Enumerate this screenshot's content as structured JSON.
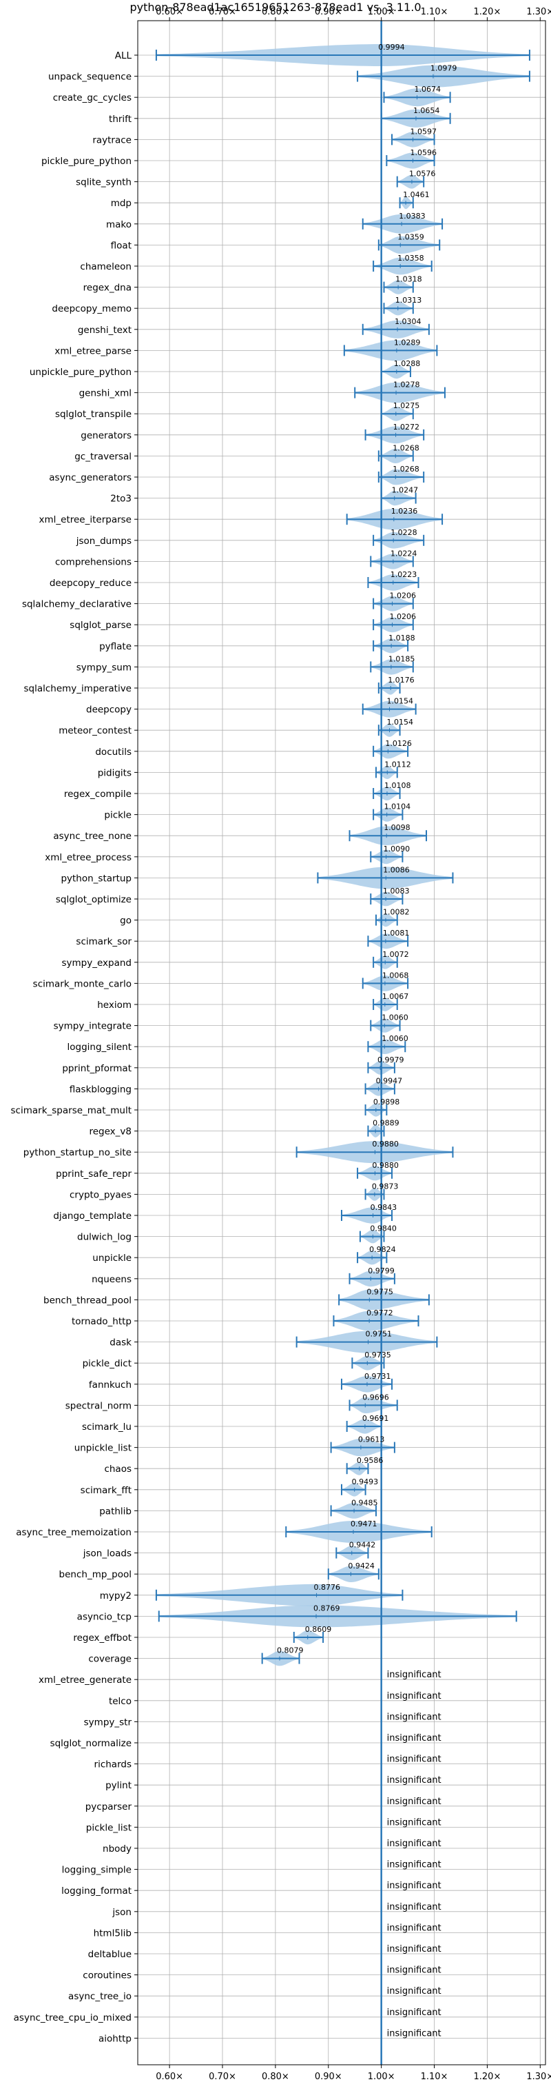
{
  "chart_data": {
    "type": "violin",
    "title": "python-878ead1ac16519651263-878ead1 vs. 3.11.0",
    "xlim": [
      0.54,
      1.31
    ],
    "xticks": [
      0.6,
      0.7,
      0.8,
      0.9,
      1.0,
      1.1,
      1.2,
      1.3
    ],
    "xtick_labels": [
      "0.60×",
      "0.70×",
      "0.80×",
      "0.90×",
      "1.00×",
      "1.10×",
      "1.20×",
      "1.30×"
    ],
    "reference": 1.0,
    "grid": true,
    "colors": {
      "violin": "#a9cbe8",
      "line": "#2a78b8",
      "grid": "#b0b0b0"
    },
    "insignificant_text": "insignificant",
    "benchmarks": [
      {
        "name": "ALL",
        "value": 0.9994,
        "label": "0.9994",
        "min": 0.575,
        "max": 1.28
      },
      {
        "name": "unpack_sequence",
        "value": 1.0979,
        "label": "1.0979",
        "min": 0.955,
        "max": 1.28
      },
      {
        "name": "create_gc_cycles",
        "value": 1.0674,
        "label": "1.0674",
        "min": 1.005,
        "max": 1.13
      },
      {
        "name": "thrift",
        "value": 1.0654,
        "label": "1.0654",
        "min": 1.0,
        "max": 1.13
      },
      {
        "name": "raytrace",
        "value": 1.0597,
        "label": "1.0597",
        "min": 1.02,
        "max": 1.1
      },
      {
        "name": "pickle_pure_python",
        "value": 1.0596,
        "label": "1.0596",
        "min": 1.01,
        "max": 1.1
      },
      {
        "name": "sqlite_synth",
        "value": 1.0576,
        "label": "1.0576",
        "min": 1.03,
        "max": 1.08
      },
      {
        "name": "mdp",
        "value": 1.0461,
        "label": "1.0461",
        "min": 1.035,
        "max": 1.06
      },
      {
        "name": "mako",
        "value": 1.0383,
        "label": "1.0383",
        "min": 0.965,
        "max": 1.115
      },
      {
        "name": "float",
        "value": 1.0359,
        "label": "1.0359",
        "min": 0.995,
        "max": 1.11
      },
      {
        "name": "chameleon",
        "value": 1.0358,
        "label": "1.0358",
        "min": 0.985,
        "max": 1.095
      },
      {
        "name": "regex_dna",
        "value": 1.0318,
        "label": "1.0318",
        "min": 1.005,
        "max": 1.06
      },
      {
        "name": "deepcopy_memo",
        "value": 1.0313,
        "label": "1.0313",
        "min": 1.005,
        "max": 1.06
      },
      {
        "name": "genshi_text",
        "value": 1.0304,
        "label": "1.0304",
        "min": 0.965,
        "max": 1.09
      },
      {
        "name": "xml_etree_parse",
        "value": 1.0289,
        "label": "1.0289",
        "min": 0.93,
        "max": 1.105
      },
      {
        "name": "unpickle_pure_python",
        "value": 1.0288,
        "label": "1.0288",
        "min": 1.0,
        "max": 1.055
      },
      {
        "name": "genshi_xml",
        "value": 1.0278,
        "label": "1.0278",
        "min": 0.95,
        "max": 1.12
      },
      {
        "name": "sqlglot_transpile",
        "value": 1.0275,
        "label": "1.0275",
        "min": 1.0,
        "max": 1.06
      },
      {
        "name": "generators",
        "value": 1.0272,
        "label": "1.0272",
        "min": 0.97,
        "max": 1.08
      },
      {
        "name": "gc_traversal",
        "value": 1.0268,
        "label": "1.0268",
        "min": 0.995,
        "max": 1.06
      },
      {
        "name": "async_generators",
        "value": 1.0268,
        "label": "1.0268",
        "min": 0.995,
        "max": 1.08
      },
      {
        "name": "2to3",
        "value": 1.0247,
        "label": "1.0247",
        "min": 1.0,
        "max": 1.065
      },
      {
        "name": "xml_etree_iterparse",
        "value": 1.0236,
        "label": "1.0236",
        "min": 0.935,
        "max": 1.115
      },
      {
        "name": "json_dumps",
        "value": 1.0228,
        "label": "1.0228",
        "min": 0.985,
        "max": 1.08
      },
      {
        "name": "comprehensions",
        "value": 1.0224,
        "label": "1.0224",
        "min": 0.98,
        "max": 1.06
      },
      {
        "name": "deepcopy_reduce",
        "value": 1.0223,
        "label": "1.0223",
        "min": 0.975,
        "max": 1.07
      },
      {
        "name": "sqlalchemy_declarative",
        "value": 1.0206,
        "label": "1.0206",
        "min": 0.985,
        "max": 1.06
      },
      {
        "name": "sqlglot_parse",
        "value": 1.0206,
        "label": "1.0206",
        "min": 0.985,
        "max": 1.06
      },
      {
        "name": "pyflate",
        "value": 1.0188,
        "label": "1.0188",
        "min": 0.985,
        "max": 1.05
      },
      {
        "name": "sympy_sum",
        "value": 1.0185,
        "label": "1.0185",
        "min": 0.98,
        "max": 1.06
      },
      {
        "name": "sqlalchemy_imperative",
        "value": 1.0176,
        "label": "1.0176",
        "min": 0.995,
        "max": 1.035
      },
      {
        "name": "deepcopy",
        "value": 1.0154,
        "label": "1.0154",
        "min": 0.965,
        "max": 1.065
      },
      {
        "name": "meteor_contest",
        "value": 1.0154,
        "label": "1.0154",
        "min": 0.995,
        "max": 1.035
      },
      {
        "name": "docutils",
        "value": 1.0126,
        "label": "1.0126",
        "min": 0.985,
        "max": 1.05
      },
      {
        "name": "pidigits",
        "value": 1.0112,
        "label": "1.0112",
        "min": 0.99,
        "max": 1.03
      },
      {
        "name": "regex_compile",
        "value": 1.0108,
        "label": "1.0108",
        "min": 0.985,
        "max": 1.035
      },
      {
        "name": "pickle",
        "value": 1.0104,
        "label": "1.0104",
        "min": 0.985,
        "max": 1.04
      },
      {
        "name": "async_tree_none",
        "value": 1.0098,
        "label": "1.0098",
        "min": 0.94,
        "max": 1.085
      },
      {
        "name": "xml_etree_process",
        "value": 1.009,
        "label": "1.0090",
        "min": 0.98,
        "max": 1.04
      },
      {
        "name": "python_startup",
        "value": 1.0086,
        "label": "1.0086",
        "min": 0.88,
        "max": 1.135
      },
      {
        "name": "sqlglot_optimize",
        "value": 1.0083,
        "label": "1.0083",
        "min": 0.98,
        "max": 1.04
      },
      {
        "name": "go",
        "value": 1.0082,
        "label": "1.0082",
        "min": 0.99,
        "max": 1.03
      },
      {
        "name": "scimark_sor",
        "value": 1.0081,
        "label": "1.0081",
        "min": 0.975,
        "max": 1.05
      },
      {
        "name": "sympy_expand",
        "value": 1.0072,
        "label": "1.0072",
        "min": 0.985,
        "max": 1.03
      },
      {
        "name": "scimark_monte_carlo",
        "value": 1.0068,
        "label": "1.0068",
        "min": 0.965,
        "max": 1.05
      },
      {
        "name": "hexiom",
        "value": 1.0067,
        "label": "1.0067",
        "min": 0.985,
        "max": 1.03
      },
      {
        "name": "sympy_integrate",
        "value": 1.006,
        "label": "1.0060",
        "min": 0.98,
        "max": 1.035
      },
      {
        "name": "logging_silent",
        "value": 1.006,
        "label": "1.0060",
        "min": 0.975,
        "max": 1.045
      },
      {
        "name": "pprint_pformat",
        "value": 0.9979,
        "label": "0.9979",
        "min": 0.975,
        "max": 1.025
      },
      {
        "name": "flaskblogging",
        "value": 0.9947,
        "label": "0.9947",
        "min": 0.97,
        "max": 1.025
      },
      {
        "name": "scimark_sparse_mat_mult",
        "value": 0.9898,
        "label": "0.9898",
        "min": 0.97,
        "max": 1.01
      },
      {
        "name": "regex_v8",
        "value": 0.9889,
        "label": "0.9889",
        "min": 0.975,
        "max": 1.005
      },
      {
        "name": "python_startup_no_site",
        "value": 0.988,
        "label": "0.9880",
        "min": 0.84,
        "max": 1.135
      },
      {
        "name": "pprint_safe_repr",
        "value": 0.988,
        "label": "0.9880",
        "min": 0.955,
        "max": 1.02
      },
      {
        "name": "crypto_pyaes",
        "value": 0.9873,
        "label": "0.9873",
        "min": 0.97,
        "max": 1.005
      },
      {
        "name": "django_template",
        "value": 0.9843,
        "label": "0.9843",
        "min": 0.925,
        "max": 1.02
      },
      {
        "name": "dulwich_log",
        "value": 0.984,
        "label": "0.9840",
        "min": 0.96,
        "max": 1.005
      },
      {
        "name": "unpickle",
        "value": 0.9824,
        "label": "0.9824",
        "min": 0.955,
        "max": 1.01
      },
      {
        "name": "nqueens",
        "value": 0.9799,
        "label": "0.9799",
        "min": 0.94,
        "max": 1.025
      },
      {
        "name": "bench_thread_pool",
        "value": 0.9775,
        "label": "0.9775",
        "min": 0.92,
        "max": 1.09
      },
      {
        "name": "tornado_http",
        "value": 0.9772,
        "label": "0.9772",
        "min": 0.91,
        "max": 1.07
      },
      {
        "name": "dask",
        "value": 0.9751,
        "label": "0.9751",
        "min": 0.84,
        "max": 1.105
      },
      {
        "name": "pickle_dict",
        "value": 0.9735,
        "label": "0.9735",
        "min": 0.945,
        "max": 1.005
      },
      {
        "name": "fannkuch",
        "value": 0.9731,
        "label": "0.9731",
        "min": 0.925,
        "max": 1.02
      },
      {
        "name": "spectral_norm",
        "value": 0.9696,
        "label": "0.9696",
        "min": 0.94,
        "max": 1.03
      },
      {
        "name": "scimark_lu",
        "value": 0.9691,
        "label": "0.9691",
        "min": 0.935,
        "max": 1.0
      },
      {
        "name": "unpickle_list",
        "value": 0.9613,
        "label": "0.9613",
        "min": 0.905,
        "max": 1.025
      },
      {
        "name": "chaos",
        "value": 0.9586,
        "label": "0.9586",
        "min": 0.935,
        "max": 0.975
      },
      {
        "name": "scimark_fft",
        "value": 0.9493,
        "label": "0.9493",
        "min": 0.925,
        "max": 0.97
      },
      {
        "name": "pathlib",
        "value": 0.9485,
        "label": "0.9485",
        "min": 0.905,
        "max": 0.99
      },
      {
        "name": "async_tree_memoization",
        "value": 0.9471,
        "label": "0.9471",
        "min": 0.82,
        "max": 1.095
      },
      {
        "name": "json_loads",
        "value": 0.9442,
        "label": "0.9442",
        "min": 0.915,
        "max": 0.975
      },
      {
        "name": "bench_mp_pool",
        "value": 0.9424,
        "label": "0.9424",
        "min": 0.9,
        "max": 0.995
      },
      {
        "name": "mypy2",
        "value": 0.8776,
        "label": "0.8776",
        "min": 0.575,
        "max": 1.04
      },
      {
        "name": "asyncio_tcp",
        "value": 0.8769,
        "label": "0.8769",
        "min": 0.58,
        "max": 1.255
      },
      {
        "name": "regex_effbot",
        "value": 0.8609,
        "label": "0.8609",
        "min": 0.835,
        "max": 0.89
      },
      {
        "name": "coverage",
        "value": 0.8079,
        "label": "0.8079",
        "min": 0.775,
        "max": 0.845
      },
      {
        "name": "xml_etree_generate",
        "insignificant": true
      },
      {
        "name": "telco",
        "insignificant": true
      },
      {
        "name": "sympy_str",
        "insignificant": true
      },
      {
        "name": "sqlglot_normalize",
        "insignificant": true
      },
      {
        "name": "richards",
        "insignificant": true
      },
      {
        "name": "pylint",
        "insignificant": true
      },
      {
        "name": "pycparser",
        "insignificant": true
      },
      {
        "name": "pickle_list",
        "insignificant": true
      },
      {
        "name": "nbody",
        "insignificant": true
      },
      {
        "name": "logging_simple",
        "insignificant": true
      },
      {
        "name": "logging_format",
        "insignificant": true
      },
      {
        "name": "json",
        "insignificant": true
      },
      {
        "name": "html5lib",
        "insignificant": true
      },
      {
        "name": "deltablue",
        "insignificant": true
      },
      {
        "name": "coroutines",
        "insignificant": true
      },
      {
        "name": "async_tree_io",
        "insignificant": true
      },
      {
        "name": "async_tree_cpu_io_mixed",
        "insignificant": true
      },
      {
        "name": "aiohttp",
        "insignificant": true
      }
    ]
  }
}
